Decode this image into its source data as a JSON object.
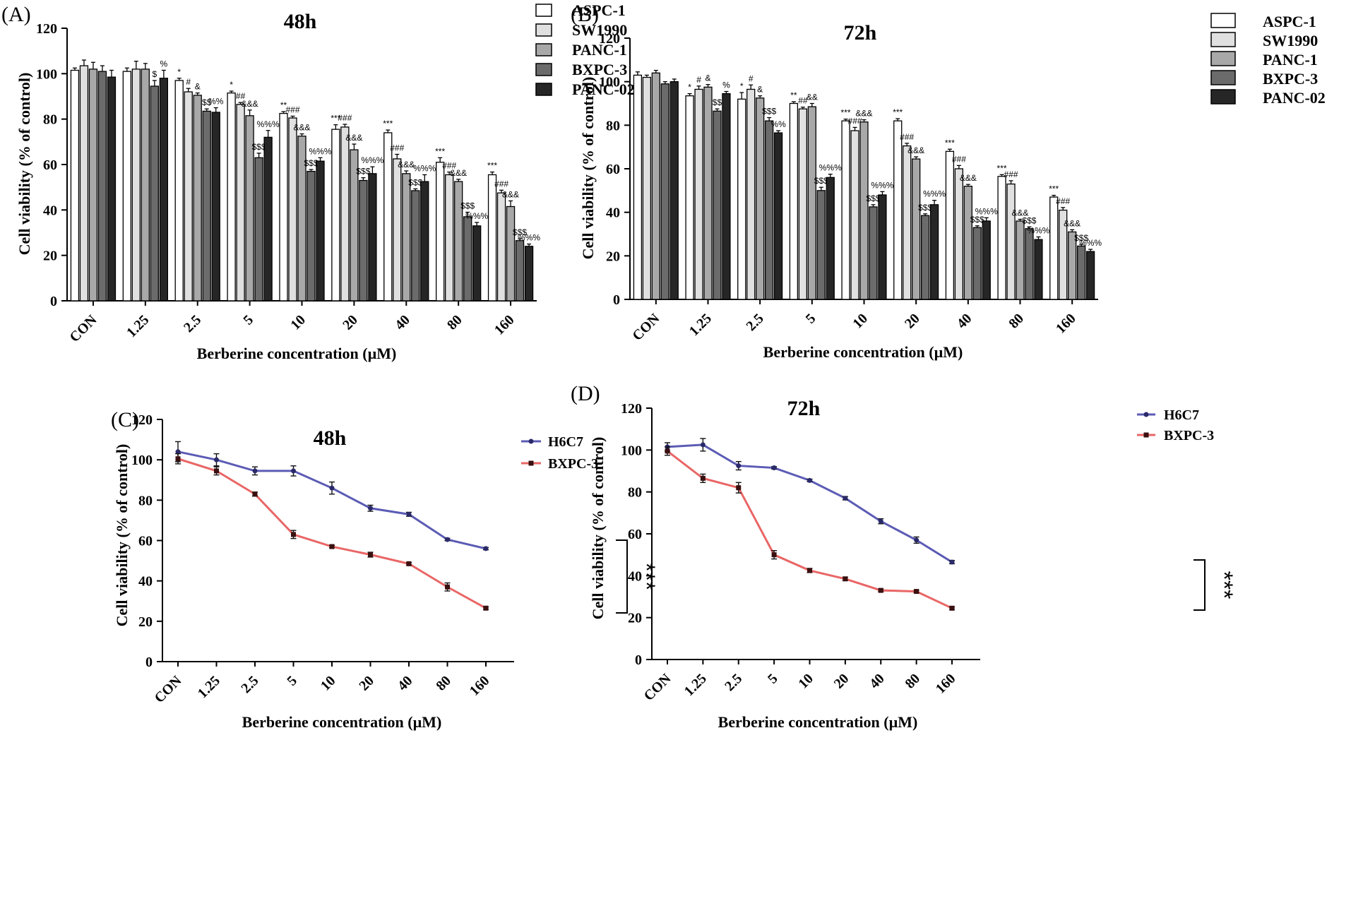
{
  "chart_data": [
    {
      "panel": "(A)",
      "type": "bar",
      "title": "48h",
      "xlabel": "Berberine concentration (µM)",
      "ylabel": "Cell viability (% of control)",
      "ylim": [
        0,
        120
      ],
      "yticks": [
        "0",
        "20",
        "40",
        "60",
        "80",
        "100",
        "120"
      ],
      "categories": [
        "CON",
        "1.25",
        "2.5",
        "5",
        "10",
        "20",
        "40",
        "80",
        "160"
      ],
      "series": [
        {
          "name": "ASPC-1",
          "color": "#ffffff",
          "values": [
            101.5,
            101,
            97,
            91.5,
            82.5,
            75.5,
            74,
            61,
            55.5
          ],
          "err": [
            1.0,
            1.5,
            1.0,
            0.8,
            0.8,
            2.0,
            1.2,
            2.0,
            1.2
          ]
        },
        {
          "name": "SW1990",
          "color": "#e0e0e0",
          "values": [
            103.5,
            102,
            92,
            86.5,
            80.5,
            76.5,
            62.5,
            55.5,
            47.5
          ],
          "err": [
            2.5,
            3.5,
            1.5,
            0.8,
            0.8,
            1.2,
            2.0,
            1.2,
            1.2
          ]
        },
        {
          "name": "PANC-1",
          "color": "#a8a8a8",
          "values": [
            102,
            102,
            90.5,
            81.5,
            72.5,
            66.5,
            56,
            52.5,
            41.5
          ],
          "err": [
            3.0,
            2.5,
            1.0,
            2.5,
            1.0,
            2.5,
            1.2,
            1.0,
            2.5
          ]
        },
        {
          "name": "BXPC-3",
          "color": "#6b6b6b",
          "values": [
            101,
            94.5,
            83.5,
            63,
            57,
            53,
            48.5,
            37,
            26.5
          ],
          "err": [
            2.5,
            2.5,
            1.0,
            2.0,
            0.8,
            1.2,
            0.8,
            2.0,
            0.8
          ]
        },
        {
          "name": "PANC-02",
          "color": "#262626",
          "values": [
            98.5,
            98,
            83,
            72,
            61.5,
            56,
            52.5,
            33,
            24
          ],
          "err": [
            3.0,
            3.5,
            2.0,
            3.0,
            1.5,
            3.0,
            3.0,
            1.5,
            1.0
          ]
        }
      ],
      "significance": [
        [
          "",
          "",
          "*",
          "*",
          "**",
          "***",
          "***",
          "***",
          "***"
        ],
        [
          "",
          "",
          "#",
          "##",
          "###",
          "###",
          "###",
          "###",
          "###"
        ],
        [
          "",
          "",
          "&",
          "&&&",
          "&&&",
          "&&&",
          "&&&",
          "&&&",
          "&&&"
        ],
        [
          "",
          "$",
          "$$",
          "$$$",
          "$$$",
          "$$$",
          "$$$",
          "$$$",
          "$$$"
        ],
        [
          "",
          "%",
          "%%",
          "%%%",
          "%%%",
          "%%%",
          "%%%",
          "%%%",
          "%%%"
        ]
      ]
    },
    {
      "panel": "(B)",
      "type": "bar",
      "title": "72h",
      "xlabel": "Berberine concentration (µM)",
      "ylabel": "Cell viability (% of control)",
      "ylim": [
        0,
        120
      ],
      "yticks": [
        "0",
        "20",
        "40",
        "60",
        "80",
        "100",
        "120"
      ],
      "categories": [
        "CON",
        "1.25",
        "2.5",
        "5",
        "10",
        "20",
        "40",
        "80",
        "160"
      ],
      "series": [
        {
          "name": "ASPC-1",
          "color": "#ffffff",
          "values": [
            103,
            93.5,
            92,
            90,
            82,
            82,
            68,
            56.5,
            47
          ],
          "err": [
            1.5,
            1.0,
            3.0,
            0.8,
            0.8,
            1.0,
            1.0,
            0.8,
            0.8
          ]
        },
        {
          "name": "SW1990",
          "color": "#e0e0e0",
          "values": [
            102,
            96.5,
            96.5,
            87.5,
            77.5,
            70.5,
            60,
            53,
            41
          ],
          "err": [
            1.0,
            1.5,
            2.0,
            0.8,
            1.5,
            1.2,
            1.5,
            1.5,
            1.2
          ]
        },
        {
          "name": "PANC-1",
          "color": "#a8a8a8",
          "values": [
            104,
            97.5,
            92.5,
            88.5,
            81.5,
            64.5,
            52,
            36,
            31
          ],
          "err": [
            1.2,
            1.2,
            1.0,
            1.5,
            1.0,
            1.0,
            0.8,
            0.8,
            1.0
          ]
        },
        {
          "name": "BXPC-3",
          "color": "#6b6b6b",
          "values": [
            99,
            86.5,
            82,
            50,
            42.5,
            38.5,
            33,
            32.5,
            24.5
          ],
          "err": [
            1.0,
            1.0,
            1.5,
            1.5,
            1.0,
            0.8,
            0.8,
            0.8,
            0.8
          ]
        },
        {
          "name": "PANC-02",
          "color": "#262626",
          "values": [
            100,
            94.5,
            76.5,
            56,
            48,
            43.5,
            36,
            27.5,
            22
          ],
          "err": [
            1.2,
            1.0,
            1.0,
            1.5,
            1.5,
            2.0,
            1.5,
            1.2,
            1.0
          ]
        }
      ],
      "significance": [
        [
          "",
          "*",
          "*",
          "**",
          "***",
          "***",
          "***",
          "***",
          "***"
        ],
        [
          "",
          "#",
          "#",
          "##",
          "###",
          "###",
          "###",
          "###",
          "###"
        ],
        [
          "",
          "&",
          "&",
          "&&",
          "&&&",
          "&&&",
          "&&&",
          "&&&",
          "&&&"
        ],
        [
          "",
          "$$",
          "$$$",
          "$$$",
          "$$$",
          "$$$",
          "$$$",
          "$$$",
          "$$$"
        ],
        [
          "",
          "%",
          "%%",
          "%%%",
          "%%%",
          "%%%",
          "%%%",
          "%%%",
          "%%%"
        ]
      ]
    },
    {
      "panel": "(C)",
      "type": "line",
      "title": "48h",
      "xlabel": "Berberine concentration (µM)",
      "ylabel": "Cell viability (% of control)",
      "ylim": [
        0,
        120
      ],
      "yticks": [
        "0",
        "20",
        "40",
        "60",
        "80",
        "100",
        "120"
      ],
      "categories": [
        "CON",
        "1.25",
        "2.5",
        "5",
        "10",
        "20",
        "40",
        "80",
        "160"
      ],
      "series": [
        {
          "name": "H6C7",
          "color": "#5b5bb5",
          "values": [
            104,
            100,
            94.5,
            94.5,
            86,
            76,
            73,
            60.5,
            56
          ],
          "err": [
            5.0,
            3.0,
            2.0,
            2.5,
            3.0,
            1.5,
            1.0,
            0.6,
            0.6
          ]
        },
        {
          "name": "BXPC-3",
          "color": "#e96666",
          "values": [
            100.5,
            94.5,
            83,
            63,
            57,
            53,
            48.5,
            37,
            26.5
          ],
          "err": [
            2.5,
            2.0,
            1.0,
            2.0,
            0.6,
            1.2,
            0.6,
            2.0,
            0.6
          ]
        }
      ],
      "significance_label": "***"
    },
    {
      "panel": "(D)",
      "type": "line",
      "title": "72h",
      "xlabel": "Berberine concentration (µM)",
      "ylabel": "Cell viability (% of control)",
      "ylim": [
        0,
        120
      ],
      "yticks": [
        "0",
        "20",
        "40",
        "60",
        "80",
        "100",
        "120"
      ],
      "categories": [
        "CON",
        "1.25",
        "2.5",
        "5",
        "10",
        "20",
        "40",
        "80",
        "160"
      ],
      "series": [
        {
          "name": "H6C7",
          "color": "#5b5bb5",
          "values": [
            101.5,
            102.5,
            92.5,
            91.5,
            85.5,
            77,
            66,
            57,
            46.5
          ],
          "err": [
            2.0,
            3.0,
            2.0,
            0.6,
            0.6,
            0.8,
            1.2,
            1.5,
            0.8
          ]
        },
        {
          "name": "BXPC-3",
          "color": "#e96666",
          "values": [
            99.5,
            86.5,
            82,
            50,
            42.5,
            38.5,
            33,
            32.5,
            24.5
          ],
          "err": [
            2.0,
            2.0,
            2.5,
            2.0,
            1.0,
            0.8,
            0.6,
            0.6,
            0.6
          ]
        }
      ],
      "significance_label": "***"
    }
  ]
}
